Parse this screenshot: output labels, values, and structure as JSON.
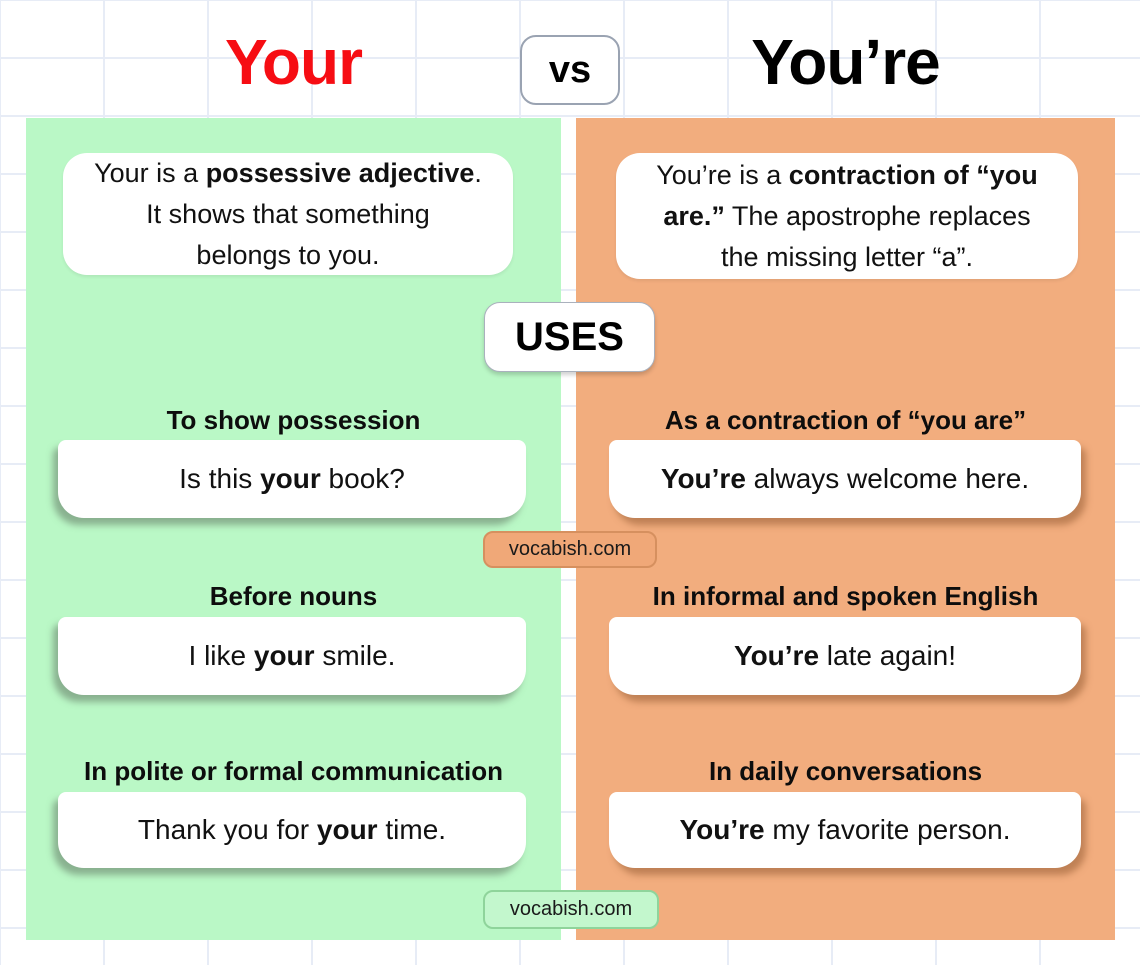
{
  "colors": {
    "grid_line": "#e7ecf6",
    "panel_green": "#baf8c6",
    "panel_orange": "#f2ad7e",
    "title_red": "#f60d13",
    "badge_orange_bg": "#f0a878",
    "badge_orange_border": "#d6905f",
    "badge_green_bg": "#c3f7cd",
    "badge_green_border": "#8fd49b"
  },
  "header": {
    "title_left": "Your",
    "vs_label": "vs",
    "title_right": "You’re"
  },
  "uses_label": "USES",
  "watermark": "vocabish.com",
  "left": {
    "definition": [
      [
        {
          "t": "Your is a "
        },
        {
          "t": "possessive adjective",
          "b": true
        },
        {
          "t": "."
        }
      ],
      [
        {
          "t": "It shows that something"
        }
      ],
      [
        {
          "t": "belongs to you."
        }
      ]
    ],
    "sections": [
      {
        "heading": "To show possession",
        "example": [
          [
            {
              "t": "Is this "
            },
            {
              "t": "your",
              "b": true
            },
            {
              "t": " book?"
            }
          ]
        ]
      },
      {
        "heading": "Before nouns",
        "example": [
          [
            {
              "t": "I like "
            },
            {
              "t": "your",
              "b": true
            },
            {
              "t": " smile."
            }
          ]
        ]
      },
      {
        "heading": "In polite or formal communication",
        "example": [
          [
            {
              "t": "Thank you for "
            },
            {
              "t": "your",
              "b": true
            },
            {
              "t": " time."
            }
          ]
        ]
      }
    ]
  },
  "right": {
    "definition": [
      [
        {
          "t": "You’re is a "
        },
        {
          "t": "contraction of “you",
          "b": true
        }
      ],
      [
        {
          "t": "are.”",
          "b": true
        },
        {
          "t": " The apostrophe replaces"
        }
      ],
      [
        {
          "t": "the missing letter “a”."
        }
      ]
    ],
    "sections": [
      {
        "heading": "As a contraction of “you are”",
        "example": [
          [
            {
              "t": "You’re",
              "b": true
            },
            {
              "t": " always welcome here."
            }
          ]
        ]
      },
      {
        "heading": "In informal and spoken English",
        "example": [
          [
            {
              "t": "You’re",
              "b": true
            },
            {
              "t": " late again!"
            }
          ]
        ]
      },
      {
        "heading": "In daily conversations",
        "example": [
          [
            {
              "t": "You’re",
              "b": true
            },
            {
              "t": " my favorite person."
            }
          ]
        ]
      }
    ]
  }
}
